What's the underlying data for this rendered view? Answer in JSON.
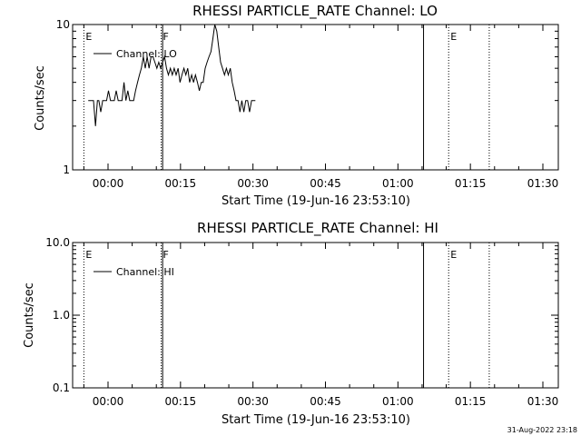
{
  "footer_timestamp": "31-Aug-2022 23:18",
  "chart_data": [
    {
      "type": "line",
      "title": "RHESSI PARTICLE_RATE Channel: LO",
      "xlabel": "Start Time (19-Jun-16 23:53:10)",
      "ylabel": "Counts/sec",
      "yscale": "log",
      "ylim": [
        1,
        10
      ],
      "y_ticks": [
        "10",
        "1"
      ],
      "xlim_minutes_from_start": [
        -5,
        31.8
      ],
      "x_ticks": [
        "00:00",
        "00:15",
        "00:30",
        "00:45",
        "01:00",
        "01:15",
        "01:30"
      ],
      "legend": "top-left",
      "series": [
        {
          "name": "Channel: LO",
          "x_minutes_from_start": [
            -4.1,
            -3.0,
            -2.6,
            -2.2,
            -1.9,
            -1.5,
            -1.1,
            -0.7,
            -0.3,
            0.1,
            0.5,
            0.9,
            1.3,
            1.7,
            2.1,
            2.5,
            2.9,
            3.3,
            3.7,
            4.1,
            4.5,
            4.9,
            5.3,
            5.7,
            6.1,
            6.5,
            6.9,
            7.3,
            7.7,
            8.1,
            8.5,
            8.9,
            9.3,
            9.7,
            10.1,
            10.5,
            10.9,
            11.3,
            11.7,
            12.1,
            12.5,
            12.9,
            13.3,
            13.7,
            14.1,
            14.5,
            14.9,
            15.3,
            15.7,
            16.1,
            16.5,
            16.9,
            17.3,
            17.7,
            18.1,
            18.5,
            18.9,
            19.3,
            19.7,
            20.1,
            20.5,
            20.9,
            21.3,
            21.7,
            22.1,
            22.5,
            22.9,
            23.3,
            23.7,
            24.1,
            24.5,
            24.9,
            25.3,
            25.7,
            26.1,
            26.5,
            26.9,
            27.3,
            27.7,
            28.1,
            28.5,
            28.9,
            29.3,
            29.7,
            30.1,
            30.5
          ],
          "y": [
            3,
            3,
            2,
            3,
            3,
            2.5,
            3,
            3,
            3,
            3.5,
            3,
            3,
            3,
            3.5,
            3,
            3,
            3,
            4,
            3,
            3.5,
            3,
            3,
            3,
            3.5,
            4,
            4.5,
            5,
            6,
            5,
            6,
            5,
            6,
            6,
            5.5,
            5,
            5.5,
            5,
            5.5,
            6,
            5,
            4.5,
            5,
            4.5,
            5,
            4.5,
            5,
            4,
            4.5,
            5,
            4.5,
            5,
            4,
            4.5,
            4,
            4.5,
            4,
            3.5,
            4,
            4,
            5,
            5.5,
            6,
            6.5,
            8,
            10,
            9,
            7,
            5.5,
            5,
            4.5,
            5,
            4.5,
            5,
            4,
            3.5,
            3,
            3,
            2.5,
            3,
            2.5,
            3,
            3,
            2.5,
            3,
            3,
            3
          ]
        }
      ],
      "markers": [
        {
          "label": "E",
          "x_minutes_from_start": -5.0,
          "style": "dotted"
        },
        {
          "label": "F",
          "x_minutes_from_start": 11.0,
          "style": "dotted"
        },
        {
          "label": "",
          "x_minutes_from_start": 11.3,
          "style": "solid"
        },
        {
          "label": "",
          "x_minutes_from_start": 65.3,
          "style": "solid"
        },
        {
          "label": "E",
          "x_minutes_from_start": 70.5,
          "style": "dotted"
        },
        {
          "label": "",
          "x_minutes_from_start": 78.9,
          "style": "dotted"
        }
      ]
    },
    {
      "type": "line",
      "title": "RHESSI PARTICLE_RATE Channel: HI",
      "xlabel": "Start Time (19-Jun-16 23:53:10)",
      "ylabel": "Counts/sec",
      "yscale": "log",
      "ylim": [
        0.1,
        10.0
      ],
      "y_ticks": [
        "10.0",
        "1.0",
        "0.1"
      ],
      "x_ticks": [
        "00:00",
        "00:15",
        "00:30",
        "00:45",
        "01:00",
        "01:15",
        "01:30"
      ],
      "legend": "top-left",
      "series": [
        {
          "name": "Channel: HI",
          "x_minutes_from_start": [],
          "y": []
        }
      ],
      "markers": [
        {
          "label": "E",
          "x_minutes_from_start": -5.0,
          "style": "dotted"
        },
        {
          "label": "F",
          "x_minutes_from_start": 11.0,
          "style": "dotted"
        },
        {
          "label": "",
          "x_minutes_from_start": 11.3,
          "style": "solid"
        },
        {
          "label": "",
          "x_minutes_from_start": 65.3,
          "style": "solid"
        },
        {
          "label": "E",
          "x_minutes_from_start": 70.5,
          "style": "dotted"
        },
        {
          "label": "",
          "x_minutes_from_start": 78.9,
          "style": "dotted"
        }
      ]
    }
  ]
}
